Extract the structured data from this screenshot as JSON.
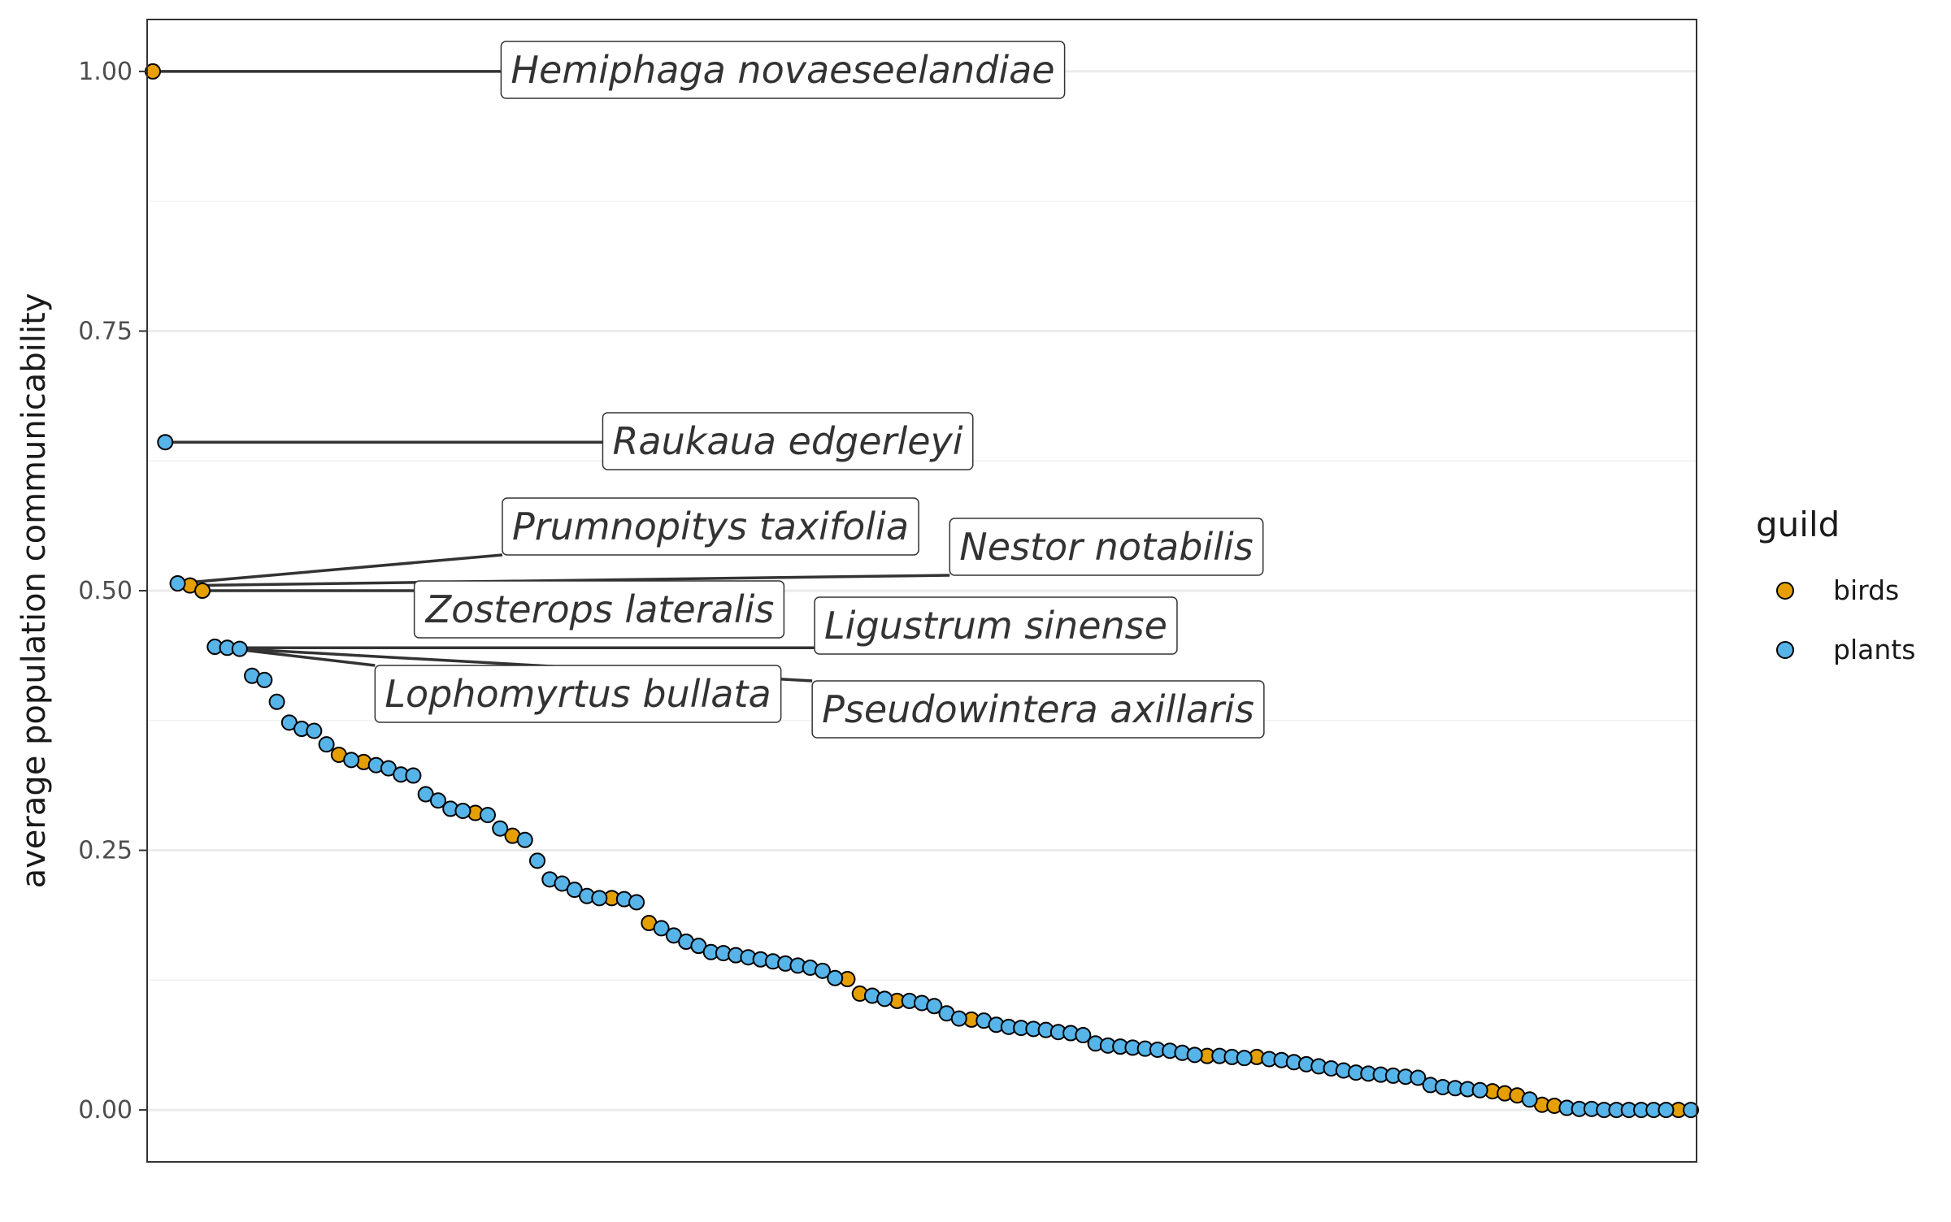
{
  "chart_data": {
    "type": "scatter",
    "title": "",
    "xlabel": "",
    "ylabel": "average population communicability",
    "ylim": [
      -0.05,
      1.05
    ],
    "yticks": [
      0.0,
      0.25,
      0.5,
      0.75,
      1.0
    ],
    "ytick_labels": [
      "0.00",
      "0.25",
      "0.50",
      "0.75",
      "1.00"
    ],
    "grid": true,
    "legend": {
      "title": "guild",
      "placement": "right",
      "entries": [
        {
          "label": "birds",
          "color": "#E69F00"
        },
        {
          "label": "plants",
          "color": "#56B4E9"
        }
      ]
    },
    "colors": {
      "birds": "#E69F00",
      "plants": "#56B4E9"
    },
    "series": [
      {
        "name": "birds",
        "points": [
          [
            1,
            1.0
          ],
          [
            4,
            0.505
          ],
          [
            5,
            0.5
          ],
          [
            16,
            0.342
          ],
          [
            18,
            0.335
          ],
          [
            27,
            0.286
          ],
          [
            30,
            0.264
          ],
          [
            38,
            0.204
          ],
          [
            41,
            0.18
          ],
          [
            57,
            0.126
          ],
          [
            58,
            0.112
          ],
          [
            61,
            0.105
          ],
          [
            67,
            0.087
          ],
          [
            86,
            0.052
          ],
          [
            90,
            0.051
          ],
          [
            109,
            0.018
          ],
          [
            110,
            0.016
          ],
          [
            111,
            0.014
          ],
          [
            113,
            0.005
          ],
          [
            114,
            0.004
          ],
          [
            124,
            0.0
          ]
        ]
      },
      {
        "name": "plants",
        "points": [
          [
            2,
            0.643
          ],
          [
            3,
            0.507
          ],
          [
            6,
            0.446
          ],
          [
            7,
            0.445
          ],
          [
            8,
            0.444
          ],
          [
            9,
            0.418
          ],
          [
            10,
            0.414
          ],
          [
            11,
            0.393
          ],
          [
            12,
            0.373
          ],
          [
            13,
            0.367
          ],
          [
            14,
            0.365
          ],
          [
            15,
            0.352
          ],
          [
            17,
            0.337
          ],
          [
            19,
            0.332
          ],
          [
            20,
            0.329
          ],
          [
            21,
            0.323
          ],
          [
            22,
            0.322
          ],
          [
            23,
            0.304
          ],
          [
            24,
            0.298
          ],
          [
            25,
            0.29
          ],
          [
            26,
            0.288
          ],
          [
            28,
            0.284
          ],
          [
            29,
            0.271
          ],
          [
            31,
            0.26
          ],
          [
            32,
            0.24
          ],
          [
            33,
            0.222
          ],
          [
            34,
            0.218
          ],
          [
            35,
            0.212
          ],
          [
            36,
            0.206
          ],
          [
            37,
            0.204
          ],
          [
            39,
            0.203
          ],
          [
            40,
            0.2
          ],
          [
            42,
            0.175
          ],
          [
            43,
            0.168
          ],
          [
            44,
            0.162
          ],
          [
            45,
            0.158
          ],
          [
            46,
            0.152
          ],
          [
            47,
            0.151
          ],
          [
            48,
            0.149
          ],
          [
            49,
            0.147
          ],
          [
            50,
            0.145
          ],
          [
            51,
            0.143
          ],
          [
            52,
            0.141
          ],
          [
            53,
            0.139
          ],
          [
            54,
            0.137
          ],
          [
            55,
            0.134
          ],
          [
            56,
            0.127
          ],
          [
            59,
            0.11
          ],
          [
            60,
            0.107
          ],
          [
            62,
            0.105
          ],
          [
            63,
            0.103
          ],
          [
            64,
            0.1
          ],
          [
            65,
            0.093
          ],
          [
            66,
            0.088
          ],
          [
            68,
            0.086
          ],
          [
            69,
            0.082
          ],
          [
            70,
            0.08
          ],
          [
            71,
            0.079
          ],
          [
            72,
            0.078
          ],
          [
            73,
            0.077
          ],
          [
            74,
            0.075
          ],
          [
            75,
            0.074
          ],
          [
            76,
            0.072
          ],
          [
            77,
            0.064
          ],
          [
            78,
            0.062
          ],
          [
            79,
            0.061
          ],
          [
            80,
            0.06
          ],
          [
            81,
            0.059
          ],
          [
            82,
            0.058
          ],
          [
            83,
            0.057
          ],
          [
            84,
            0.055
          ],
          [
            85,
            0.053
          ],
          [
            87,
            0.052
          ],
          [
            88,
            0.051
          ],
          [
            89,
            0.05
          ],
          [
            91,
            0.049
          ],
          [
            92,
            0.048
          ],
          [
            93,
            0.046
          ],
          [
            94,
            0.044
          ],
          [
            95,
            0.042
          ],
          [
            96,
            0.04
          ],
          [
            97,
            0.038
          ],
          [
            98,
            0.036
          ],
          [
            99,
            0.035
          ],
          [
            100,
            0.034
          ],
          [
            101,
            0.033
          ],
          [
            102,
            0.032
          ],
          [
            103,
            0.031
          ],
          [
            104,
            0.024
          ],
          [
            105,
            0.022
          ],
          [
            106,
            0.021
          ],
          [
            107,
            0.02
          ],
          [
            108,
            0.019
          ],
          [
            112,
            0.01
          ],
          [
            115,
            0.002
          ],
          [
            116,
            0.001
          ],
          [
            117,
            0.001
          ],
          [
            118,
            0.0
          ],
          [
            119,
            0.0
          ],
          [
            120,
            0.0
          ],
          [
            121,
            0.0
          ],
          [
            122,
            0.0
          ],
          [
            123,
            0.0
          ],
          [
            125,
            0.0
          ]
        ]
      }
    ],
    "annotations": [
      {
        "label": "Hemiphaga novaeseelandiae",
        "point_index": 1
      },
      {
        "label": "Raukaua edgerleyi",
        "point_index": 2
      },
      {
        "label": "Prumnopitys taxifolia",
        "point_index": 3
      },
      {
        "label": "Nestor notabilis",
        "point_index": 4
      },
      {
        "label": "Zosterops lateralis",
        "point_index": 5
      },
      {
        "label": "Ligustrum sinense",
        "point_index": 7
      },
      {
        "label": "Lophomyrtus bullata",
        "point_index": 6
      },
      {
        "label": "Pseudowintera axillaris",
        "point_index": 8
      }
    ]
  }
}
